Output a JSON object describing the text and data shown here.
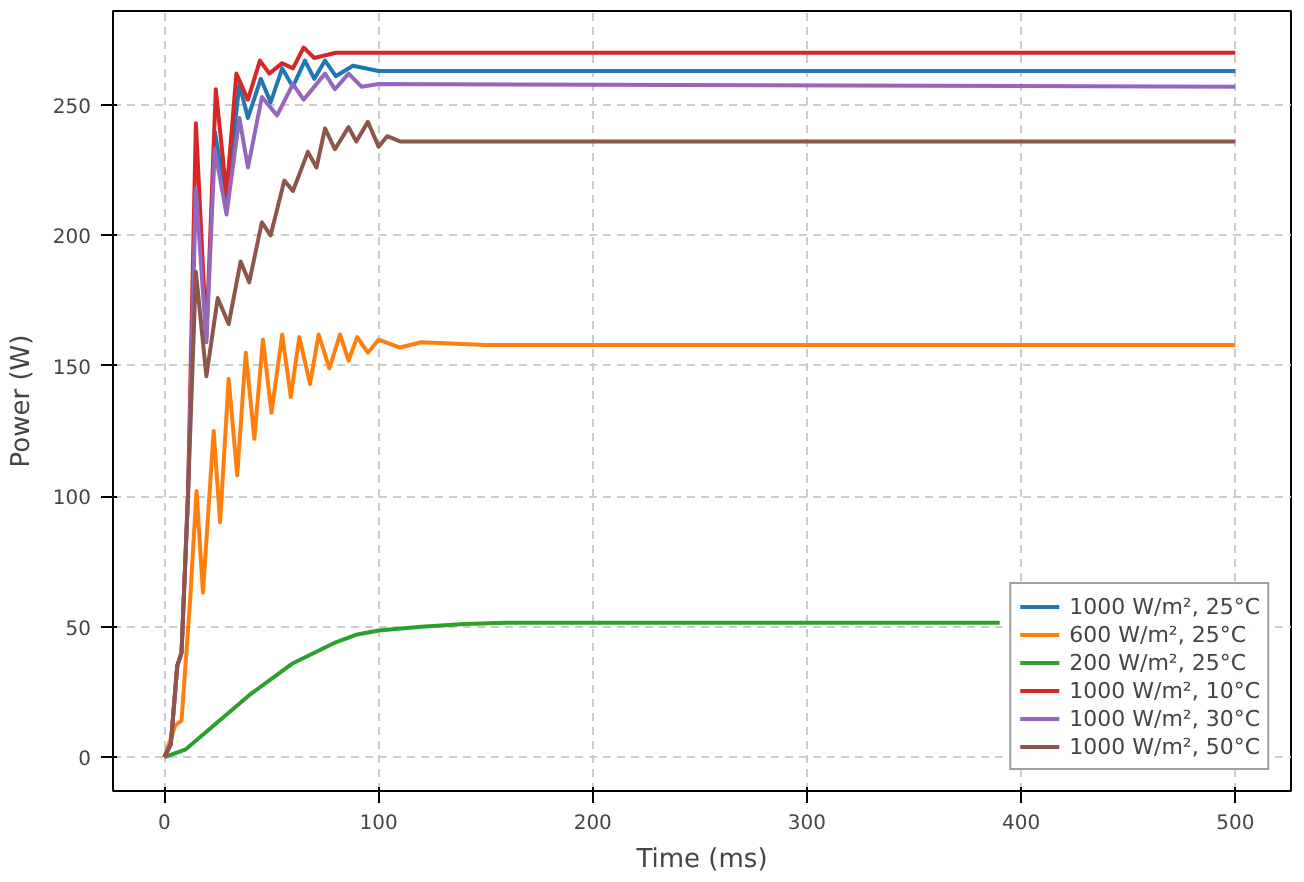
{
  "chart_data": {
    "type": "line",
    "xlabel": "Time (ms)",
    "ylabel": "Power (W)",
    "xlim": [
      -24,
      526
    ],
    "ylim": [
      -13,
      286
    ],
    "xticks": [
      0,
      100,
      200,
      300,
      400,
      500
    ],
    "yticks": [
      0,
      50,
      100,
      150,
      200,
      250
    ],
    "grid": true,
    "legend": "bottom right",
    "line_style": "solid",
    "marker": "none",
    "series": [
      {
        "name": "1000 W/m², 25°C",
        "color": "#1f77b4",
        "x": [
          23.5,
          29,
          35,
          39,
          45,
          49.6,
          55,
          60,
          65.6,
          70,
          75,
          80,
          88,
          100,
          500
        ],
        "values": [
          240,
          213,
          258,
          245,
          260,
          251,
          264,
          257,
          267,
          260,
          267,
          261,
          265,
          263,
          263
        ]
      },
      {
        "name": "600 W/m², 25°C",
        "color": "#ff7f0e",
        "x": [
          0,
          5,
          8,
          12,
          15,
          18,
          23,
          26,
          30,
          34,
          38,
          42,
          46,
          50,
          55,
          59,
          63,
          68,
          72,
          77,
          82,
          86,
          90,
          95,
          100,
          110,
          120,
          150,
          500
        ],
        "values": [
          0,
          12,
          14,
          60,
          102,
          63,
          125,
          90,
          145,
          108,
          155,
          122,
          160,
          132,
          162,
          138,
          161,
          143,
          162,
          149,
          162,
          152,
          161,
          155,
          160,
          157,
          159,
          158,
          158
        ]
      },
      {
        "name": "200 W/m², 25°C",
        "color": "#2ca02c",
        "x": [
          0,
          10,
          20,
          30,
          40,
          50,
          60,
          70,
          80,
          90,
          100,
          120,
          140,
          160,
          200,
          390
        ],
        "values": [
          0,
          3,
          10,
          17,
          24,
          30,
          36,
          40,
          44,
          47,
          48.5,
          50,
          51,
          51.5,
          51.5,
          51.5
        ]
      },
      {
        "name": "1000 W/m², 10°C",
        "color": "#d62728",
        "x": [
          0,
          3,
          6,
          8,
          11,
          14.7,
          19.6,
          24,
          29,
          33.6,
          39,
          44.6,
          49,
          55,
          60,
          65,
          70,
          80,
          500
        ],
        "values": [
          0,
          5,
          35,
          40,
          100,
          243,
          161,
          256,
          216,
          262,
          252,
          267,
          262,
          266,
          264,
          272,
          268,
          270,
          270
        ]
      },
      {
        "name": "1000 W/m², 30°C",
        "color": "#9467bd",
        "x": [
          0,
          3,
          6,
          8,
          11,
          14.7,
          19.6,
          23.5,
          29,
          35,
          39,
          45.5,
          52.6,
          60,
          65,
          75,
          79.6,
          86,
          92,
          100,
          500
        ],
        "values": [
          0,
          5,
          35,
          40,
          100,
          218,
          159,
          233,
          208,
          245,
          226,
          253,
          246,
          258,
          252,
          262,
          256,
          262,
          257,
          258,
          257
        ]
      },
      {
        "name": "1000 W/m², 50°C",
        "color": "#8c564b",
        "x": [
          0,
          3,
          6,
          8,
          11,
          14.7,
          19.6,
          24.9,
          30,
          35.6,
          39.6,
          45.5,
          49.6,
          56,
          60,
          67,
          71,
          75,
          79.6,
          86,
          89.6,
          95,
          100,
          104,
          110,
          500
        ],
        "values": [
          0,
          5,
          35,
          40,
          100,
          186,
          146,
          176,
          166,
          190,
          182,
          205,
          200,
          221,
          217,
          232,
          226,
          241,
          233,
          241.5,
          236,
          243.5,
          234,
          238,
          236,
          236
        ]
      }
    ]
  }
}
